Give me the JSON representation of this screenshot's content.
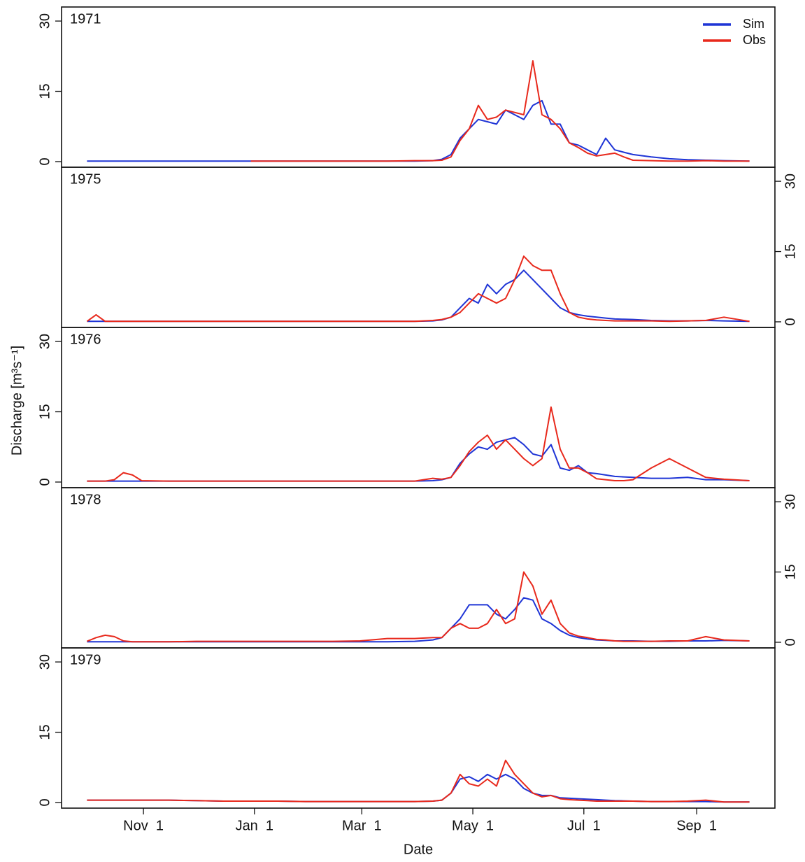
{
  "chart_data": [
    {
      "type": "line",
      "title": "1971",
      "yaxis": "left",
      "legend": "top-right",
      "x": [
        0,
        5,
        10,
        15,
        20,
        25,
        30,
        45,
        60,
        75,
        90,
        105,
        120,
        135,
        150,
        165,
        180,
        190,
        195,
        200,
        205,
        210,
        215,
        220,
        225,
        230,
        235,
        240,
        245,
        250,
        255,
        260,
        265,
        270,
        275,
        280,
        285,
        290,
        295,
        300,
        310,
        320,
        330,
        340,
        350,
        364
      ],
      "xlim": [
        -14,
        378
      ],
      "ylim": [
        -1.2,
        33
      ],
      "yticks": [
        0,
        15,
        30
      ],
      "series": [
        {
          "name": "Sim",
          "color": "#1f35d6",
          "values": [
            0.1,
            0.1,
            0.1,
            0.1,
            0.1,
            0.1,
            0.1,
            0.1,
            0.1,
            0.1,
            0.1,
            0.1,
            0.1,
            0.1,
            0.1,
            0.1,
            0.1,
            0.2,
            0.5,
            1.5,
            5,
            7,
            9,
            8.5,
            8,
            11,
            10,
            9,
            12,
            13,
            8,
            8,
            4,
            3.5,
            2.5,
            1.5,
            5,
            2.5,
            2,
            1.5,
            1,
            0.6,
            0.4,
            0.3,
            0.2,
            0.1
          ]
        },
        {
          "name": "Obs",
          "color": "#e8291c",
          "values": [
            null,
            null,
            null,
            null,
            null,
            null,
            null,
            null,
            null,
            null,
            0.1,
            0.1,
            0.1,
            0.1,
            0.1,
            0.1,
            0.2,
            0.2,
            0.3,
            1,
            4.5,
            7,
            12,
            9,
            9.5,
            11,
            10.5,
            10,
            21.5,
            10,
            9,
            7,
            4,
            3,
            1.8,
            1.2,
            1.5,
            1.8,
            1,
            0.3,
            0.2,
            0.1,
            0.1,
            0.2,
            0.1,
            0.1
          ]
        }
      ]
    },
    {
      "type": "line",
      "title": "1975",
      "yaxis": "right",
      "x": [
        0,
        5,
        10,
        15,
        20,
        25,
        30,
        45,
        60,
        75,
        90,
        105,
        120,
        135,
        150,
        165,
        180,
        190,
        195,
        200,
        205,
        210,
        215,
        220,
        225,
        230,
        235,
        240,
        245,
        250,
        255,
        260,
        265,
        270,
        275,
        280,
        285,
        290,
        295,
        300,
        310,
        320,
        330,
        340,
        350,
        364
      ],
      "xlim": [
        -14,
        378
      ],
      "ylim": [
        -1.2,
        33
      ],
      "yticks": [
        0,
        15,
        30
      ],
      "series": [
        {
          "color": "#1f35d6",
          "values": [
            0.1,
            0.1,
            0.1,
            0.1,
            0.1,
            0.1,
            0.1,
            0.1,
            0.1,
            0.1,
            0.1,
            0.1,
            0.1,
            0.1,
            0.1,
            0.1,
            0.1,
            0.2,
            0.4,
            1,
            3,
            5,
            4,
            8,
            6,
            8,
            9,
            11,
            9,
            7,
            5,
            3,
            2,
            1.5,
            1.2,
            1,
            0.8,
            0.6,
            0.55,
            0.5,
            0.3,
            0.2,
            0.2,
            0.3,
            0.2,
            0.1
          ]
        },
        {
          "color": "#e8291c",
          "values": [
            0.1,
            1.5,
            0.1,
            0.1,
            0.1,
            0.1,
            0.1,
            0.1,
            0.1,
            0.1,
            0.1,
            0.1,
            0.1,
            0.1,
            0.1,
            0.1,
            0.1,
            0.3,
            0.5,
            1,
            2,
            4,
            6,
            5,
            4,
            5,
            9,
            14,
            12,
            11,
            11,
            6,
            2,
            1,
            0.6,
            0.4,
            0.3,
            0.2,
            0.2,
            0.2,
            0.2,
            0.1,
            0.2,
            0.3,
            1,
            0.1
          ]
        }
      ]
    },
    {
      "type": "line",
      "title": "1976",
      "yaxis": "left",
      "ylabel": "Discharge [m³s⁻¹]",
      "x": [
        0,
        5,
        10,
        15,
        20,
        25,
        30,
        45,
        60,
        75,
        90,
        105,
        120,
        135,
        150,
        165,
        180,
        190,
        195,
        200,
        205,
        210,
        215,
        220,
        225,
        230,
        235,
        240,
        245,
        250,
        255,
        260,
        265,
        270,
        275,
        280,
        285,
        290,
        295,
        300,
        310,
        320,
        330,
        340,
        350,
        364
      ],
      "xlim": [
        -14,
        378
      ],
      "ylim": [
        -1.2,
        33
      ],
      "yticks": [
        0,
        15,
        30
      ],
      "series": [
        {
          "color": "#1f35d6",
          "values": [
            0.2,
            0.2,
            0.2,
            0.2,
            0.2,
            0.2,
            0.2,
            0.2,
            0.2,
            0.2,
            0.2,
            0.2,
            0.2,
            0.2,
            0.2,
            0.2,
            0.2,
            0.3,
            0.5,
            1,
            4,
            6,
            7.5,
            7,
            8.5,
            9,
            9.5,
            8,
            6,
            5.5,
            8,
            3,
            2.5,
            3.5,
            2,
            1.8,
            1.5,
            1.2,
            1.1,
            1,
            0.8,
            0.8,
            1,
            0.5,
            0.5,
            0.3
          ]
        },
        {
          "color": "#e8291c",
          "values": [
            0.2,
            0.2,
            0.2,
            0.5,
            2,
            1.5,
            0.3,
            0.2,
            0.2,
            0.2,
            0.2,
            0.2,
            0.2,
            0.2,
            0.2,
            0.2,
            0.2,
            0.8,
            0.6,
            1,
            3.5,
            6.5,
            8.5,
            10,
            7,
            9,
            7,
            5,
            3.5,
            5,
            16,
            7,
            3,
            3,
            2,
            0.7,
            0.5,
            0.3,
            0.3,
            0.5,
            3,
            5,
            3,
            1,
            0.6,
            0.3
          ]
        }
      ]
    },
    {
      "type": "line",
      "title": "1978",
      "yaxis": "right",
      "x": [
        0,
        5,
        10,
        15,
        20,
        25,
        30,
        45,
        60,
        75,
        90,
        105,
        120,
        135,
        150,
        165,
        180,
        190,
        195,
        200,
        205,
        210,
        215,
        220,
        225,
        230,
        235,
        240,
        245,
        250,
        255,
        260,
        265,
        270,
        275,
        280,
        285,
        290,
        295,
        300,
        310,
        320,
        330,
        340,
        350,
        364
      ],
      "xlim": [
        -14,
        378
      ],
      "ylim": [
        -1.2,
        33
      ],
      "yticks": [
        0,
        15,
        30
      ],
      "series": [
        {
          "color": "#1f35d6",
          "values": [
            0.1,
            0.1,
            0.1,
            0.1,
            0.1,
            0.1,
            0.1,
            0.1,
            0.1,
            0.1,
            0.1,
            0.1,
            0.1,
            0.1,
            0.1,
            0.1,
            0.2,
            0.5,
            1,
            3,
            5,
            8,
            8,
            8,
            6,
            5,
            7,
            9.5,
            9,
            5,
            4,
            2.5,
            1.5,
            1,
            0.7,
            0.5,
            0.4,
            0.3,
            0.3,
            0.3,
            0.2,
            0.2,
            0.3,
            0.3,
            0.4,
            0.3
          ]
        },
        {
          "color": "#e8291c",
          "values": [
            0.2,
            1,
            1.5,
            1.2,
            0.3,
            0.1,
            0.1,
            0.1,
            0.2,
            0.2,
            0.2,
            0.2,
            0.2,
            0.2,
            0.3,
            0.8,
            0.8,
            1,
            1,
            3,
            4,
            3,
            3,
            4,
            7,
            4,
            5,
            15,
            12,
            6,
            9,
            4,
            2,
            1.3,
            1,
            0.6,
            0.5,
            0.3,
            0.2,
            0.2,
            0.2,
            0.3,
            0.3,
            1.2,
            0.5,
            0.3
          ]
        }
      ]
    },
    {
      "type": "line",
      "title": "1979",
      "yaxis": "left",
      "xlabel": "Date",
      "x": [
        0,
        5,
        10,
        15,
        20,
        25,
        30,
        45,
        60,
        75,
        90,
        105,
        120,
        135,
        150,
        165,
        180,
        190,
        195,
        200,
        205,
        210,
        215,
        220,
        225,
        230,
        235,
        240,
        245,
        250,
        255,
        260,
        265,
        270,
        275,
        280,
        285,
        290,
        295,
        300,
        310,
        320,
        330,
        340,
        350,
        364
      ],
      "xlim": [
        -14,
        378
      ],
      "ylim": [
        -1.2,
        33
      ],
      "yticks": [
        0,
        15,
        30
      ],
      "xticks": [
        {
          "value": 31,
          "label": "Nov  1"
        },
        {
          "value": 92,
          "label": "Jan  1"
        },
        {
          "value": 151,
          "label": "Mar  1"
        },
        {
          "value": 212,
          "label": "May  1"
        },
        {
          "value": 273,
          "label": "Jul  1"
        },
        {
          "value": 335,
          "label": "Sep  1"
        }
      ],
      "series": [
        {
          "color": "#1f35d6",
          "values": [
            0.5,
            0.5,
            0.5,
            0.5,
            0.5,
            0.5,
            0.5,
            0.5,
            0.4,
            0.3,
            0.3,
            0.3,
            0.2,
            0.2,
            0.2,
            0.2,
            0.2,
            0.3,
            0.5,
            2,
            5,
            5.5,
            4.5,
            6,
            5,
            6,
            5,
            3,
            2,
            1.5,
            1.5,
            1,
            0.9,
            0.8,
            0.7,
            0.6,
            0.5,
            0.4,
            0.35,
            0.3,
            0.2,
            0.2,
            0.2,
            0.2,
            0.1,
            0.1
          ]
        },
        {
          "color": "#e8291c",
          "values": [
            0.5,
            0.5,
            0.5,
            0.5,
            0.5,
            0.5,
            0.5,
            0.5,
            0.4,
            0.3,
            0.3,
            0.3,
            0.2,
            0.2,
            0.2,
            0.2,
            0.2,
            0.3,
            0.5,
            2,
            6,
            4,
            3.5,
            5,
            3.5,
            9,
            6,
            4,
            2,
            1.2,
            1.5,
            0.8,
            0.6,
            0.5,
            0.4,
            0.3,
            0.3,
            0.3,
            0.3,
            0.3,
            0.2,
            0.2,
            0.3,
            0.5,
            0.1,
            0.1
          ]
        }
      ]
    }
  ]
}
